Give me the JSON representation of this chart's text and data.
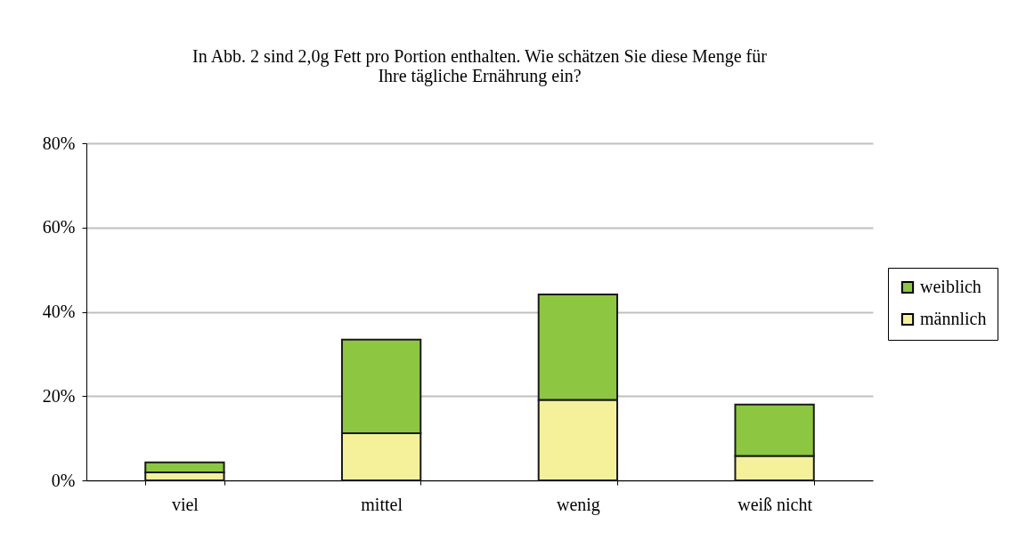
{
  "chart_data": {
    "type": "bar",
    "title": [
      "In Abb. 2 sind 2,0g Fett pro Portion enthalten. Wie schätzen Sie diese Menge für",
      "Ihre tägliche Ernährung ein?"
    ],
    "categories": [
      "viel",
      "mittel",
      "wenig",
      "weiß nicht"
    ],
    "stacked": true,
    "series": [
      {
        "name": "männlich",
        "color": "#f5f19b",
        "values": [
          1.9,
          11.2,
          19.1,
          5.8
        ]
      },
      {
        "name": "weiblich",
        "color": "#8dc641",
        "values": [
          2.4,
          22.2,
          25.0,
          12.2
        ]
      }
    ],
    "ylim": [
      0,
      80
    ],
    "yticks": [
      {
        "value": 0,
        "label": "0%"
      },
      {
        "value": 20,
        "label": "20%"
      },
      {
        "value": 40,
        "label": "40%"
      },
      {
        "value": 60,
        "label": "60%"
      },
      {
        "value": 80,
        "label": "80%"
      }
    ],
    "grid": "y",
    "legend": "right"
  }
}
